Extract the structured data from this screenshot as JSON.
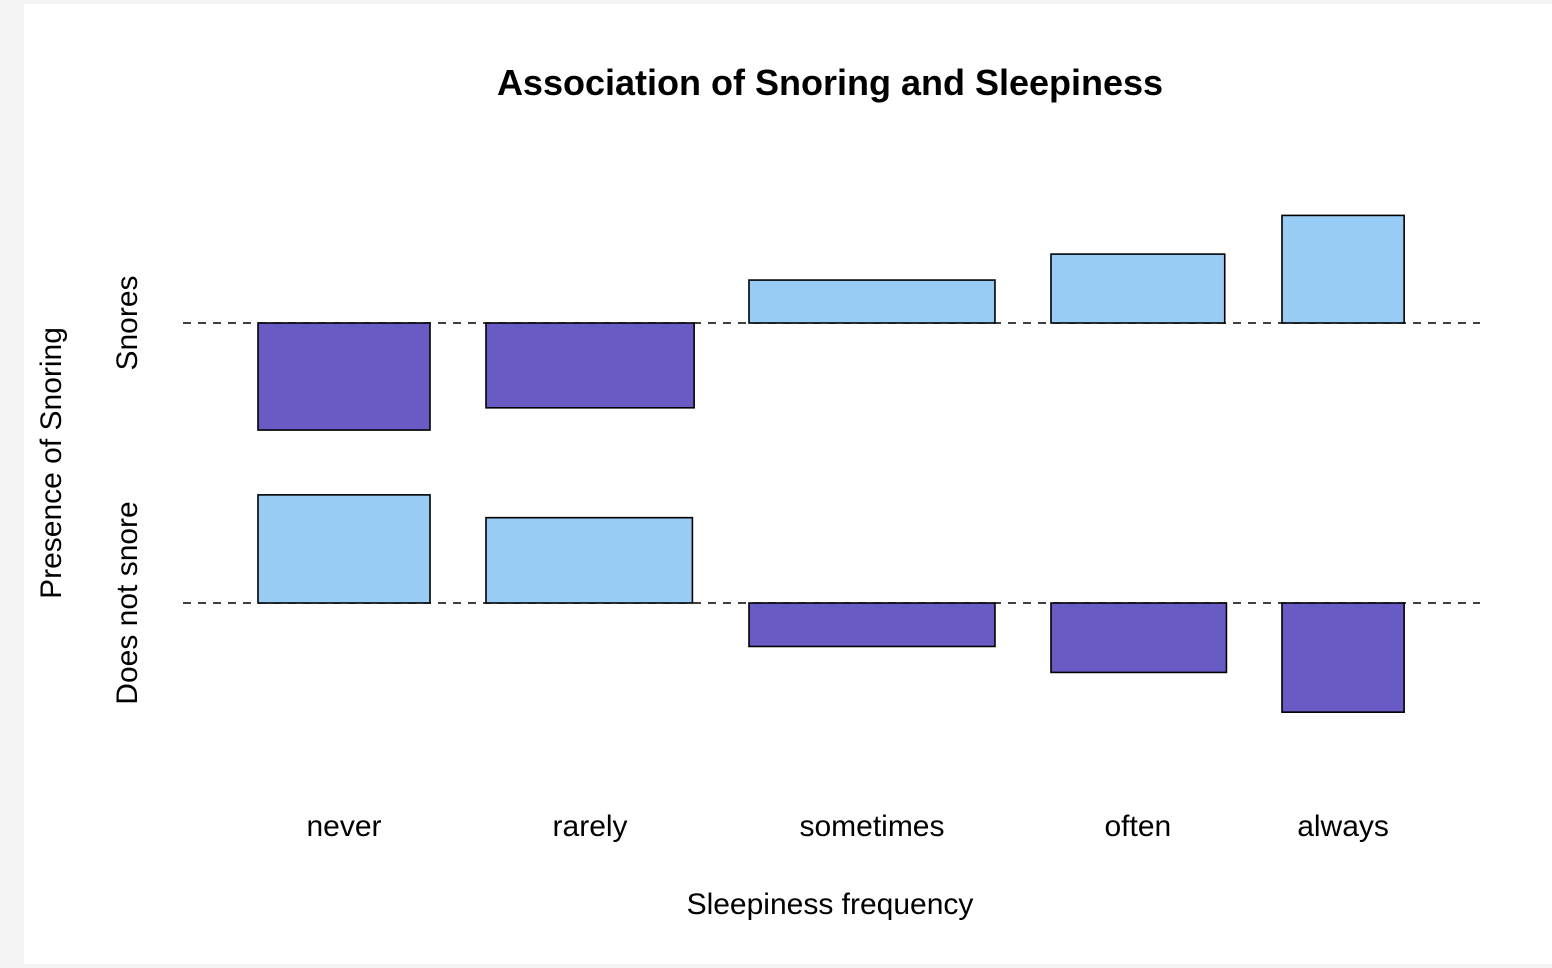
{
  "chart_data": {
    "type": "bar",
    "subtype": "association-plot",
    "title": "Association of Snoring and Sleepiness",
    "xlabel": "Sleepiness frequency",
    "ylabel": "Presence of Snoring",
    "categories": [
      "never",
      "rarely",
      "sometimes",
      "often",
      "always"
    ],
    "rows": [
      {
        "name": "Snores",
        "residuals": [
          -2.02,
          -1.6,
          0.81,
          1.3,
          2.03
        ],
        "relative_widths": [
          1.0,
          1.21,
          1.43,
          1.01,
          0.71
        ]
      },
      {
        "name": "Does not snore",
        "residuals": [
          2.04,
          1.61,
          -0.82,
          -1.31,
          -2.06
        ],
        "relative_widths": [
          1.0,
          1.2,
          1.43,
          1.02,
          0.71
        ]
      }
    ],
    "colors": {
      "positive": "#99ccf5",
      "negative": "#695bc4"
    },
    "grid": false,
    "baseline_style": "dashed"
  }
}
